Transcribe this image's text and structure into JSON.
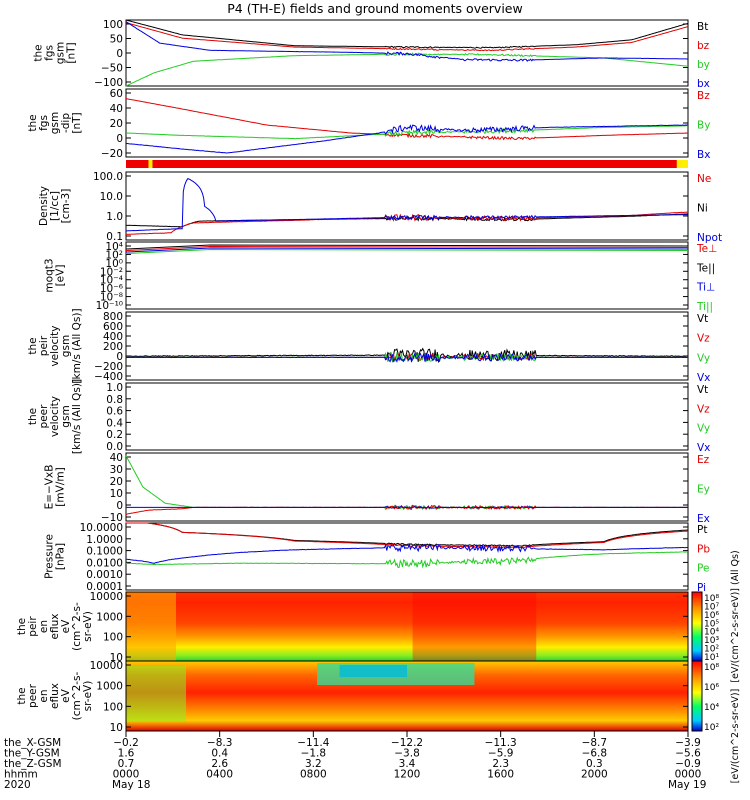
{
  "title": "P4 (TH-E) fields and ground moments overview",
  "colors": {
    "black": "#000000",
    "red": "#e00000",
    "green": "#22cc22",
    "blue": "#0000dd"
  },
  "panels": [
    {
      "id": "fgs_gsm",
      "ylabel": [
        "the",
        "fgs",
        "gsm",
        "[nT]"
      ],
      "ticks": [
        "100",
        "50",
        "0",
        "−50",
        "−100"
      ],
      "ylim": [
        -100,
        100
      ],
      "legend": [
        {
          "name": "Bt",
          "color": "#000000"
        },
        {
          "name": "bz",
          "color": "#e00000"
        },
        {
          "name": "by",
          "color": "#22cc22"
        },
        {
          "name": "bx",
          "color": "#0000dd"
        }
      ]
    },
    {
      "id": "fgs_gsm_dip",
      "ylabel": [
        "the",
        "fgs",
        "gsm",
        "-dip",
        "[nT]"
      ],
      "ticks": [
        "60",
        "40",
        "20",
        "0",
        "−20"
      ],
      "ylim": [
        -25,
        60
      ],
      "legend": [
        {
          "name": "Bz",
          "color": "#e00000"
        },
        {
          "name": "By",
          "color": "#22cc22"
        },
        {
          "name": "Bx",
          "color": "#0000dd"
        }
      ]
    },
    {
      "id": "density",
      "ylabel": [
        "Density",
        "[1/cc]",
        "[cm-3]"
      ],
      "ticks": [
        "100.0",
        "10.0",
        "1.0",
        "0.1"
      ],
      "ylim": [
        0.05,
        200
      ],
      "log": true,
      "legend": [
        {
          "name": "Ne",
          "color": "#e00000"
        },
        {
          "name": "Ni",
          "color": "#000000"
        },
        {
          "name": "Npot",
          "color": "#0000dd"
        }
      ]
    },
    {
      "id": "temp",
      "ylabel": [
        "moqt3",
        "[eV]"
      ],
      "ticks": [
        "10⁴",
        "10²",
        "10⁰",
        "10⁻²",
        "10⁻⁴",
        "10⁻⁶",
        "10⁻⁸",
        "10⁻¹⁰"
      ],
      "log": true,
      "legend": [
        {
          "name": "Te⊥",
          "color": "#e00000"
        },
        {
          "name": "Te||",
          "color": "#000000"
        },
        {
          "name": "Ti⊥",
          "color": "#0000dd"
        },
        {
          "name": "Ti||",
          "color": "#22cc22"
        }
      ]
    },
    {
      "id": "peir_vel",
      "ylabel": [
        "the",
        "peir",
        "velocity",
        "gsm",
        "[km/s (All Qs)]"
      ],
      "ticks": [
        "800",
        "600",
        "400",
        "200",
        "0",
        "−200",
        "−400"
      ],
      "ylim": [
        -400,
        800
      ],
      "legend": [
        {
          "name": "Vt",
          "color": "#000000"
        },
        {
          "name": "Vz",
          "color": "#e00000"
        },
        {
          "name": "Vy",
          "color": "#22cc22"
        },
        {
          "name": "Vx",
          "color": "#0000dd"
        }
      ]
    },
    {
      "id": "peer_vel",
      "ylabel": [
        "the",
        "peer",
        "velocity",
        "gsm",
        "[km/s (All Qs)]"
      ],
      "ticks": [
        "1.0",
        "0.8",
        "0.6",
        "0.4",
        "0.2",
        "0.0"
      ],
      "ylim": [
        0,
        1
      ],
      "legend": [
        {
          "name": "Vt",
          "color": "#000000"
        },
        {
          "name": "Vz",
          "color": "#e00000"
        },
        {
          "name": "Vy",
          "color": "#22cc22"
        },
        {
          "name": "Vx",
          "color": "#0000dd"
        }
      ]
    },
    {
      "id": "efield",
      "ylabel": [
        "E=−VxB",
        "[mV/m]"
      ],
      "ticks": [
        "40",
        "30",
        "20",
        "10",
        "0",
        "−10"
      ],
      "ylim": [
        -10,
        40
      ],
      "legend": [
        {
          "name": "Ez",
          "color": "#e00000"
        },
        {
          "name": "Ey",
          "color": "#22cc22"
        },
        {
          "name": "Ex",
          "color": "#0000dd"
        }
      ]
    },
    {
      "id": "pressure",
      "ylabel": [
        "Pressure",
        "[nPa]"
      ],
      "ticks": [
        "10.0000",
        "1.0000",
        "0.1000",
        "0.0100",
        "0.0010",
        "0.0001"
      ],
      "ylim": [
        0.0001,
        10
      ],
      "log": true,
      "legend": [
        {
          "name": "Pt",
          "color": "#000000"
        },
        {
          "name": "Pb",
          "color": "#e00000"
        },
        {
          "name": "Pe",
          "color": "#22cc22"
        },
        {
          "name": "Pi",
          "color": "#0000dd"
        }
      ]
    },
    {
      "id": "peir_spec",
      "ylabel": [
        "the",
        "peir",
        "en",
        "eflux",
        "eV",
        "(cm^2-s-",
        "sr-eV)"
      ],
      "ticks": [
        "10000",
        "1000",
        "100",
        "10"
      ],
      "log": true
    },
    {
      "id": "peer_spec",
      "ylabel": [
        "the",
        "peer",
        "en",
        "eflux",
        "eV",
        "(cm^2-s-",
        "sr-eV)"
      ],
      "ticks": [
        "10000",
        "1000",
        "100",
        "10"
      ],
      "log": true
    }
  ],
  "colorbars": [
    {
      "labels": [
        "10⁸",
        "10⁷",
        "10⁶",
        "10⁵",
        "10⁴",
        "10³",
        "10²",
        "10¹"
      ],
      "title": "[eV/(cm^2-s-sr-eV)] (All Qs)"
    },
    {
      "labels": [
        "10⁸",
        "10⁶",
        "10⁴",
        "10²"
      ],
      "title": "[eV/(cm^2-s-sr-eV)]"
    }
  ],
  "axis": {
    "rows": [
      {
        "name": "the_X-GSM",
        "values": [
          "−0.2",
          "−8.3",
          "−11.4",
          "−12.2",
          "−11.3",
          "−8.7",
          "−3.9"
        ]
      },
      {
        "name": "the_Y-GSM",
        "values": [
          "1.6",
          "0.4",
          "−1.8",
          "−3.8",
          "−5.9",
          "−6.8",
          "−5.6"
        ]
      },
      {
        "name": "the_Z-GSM",
        "values": [
          "0.7",
          "2.6",
          "3.2",
          "3.4",
          "2.3",
          "0.3",
          "−0.9"
        ]
      },
      {
        "name": "hhmm",
        "values": [
          "0000",
          "0400",
          "0800",
          "1200",
          "1600",
          "2000",
          "0000"
        ]
      }
    ],
    "year": "2020",
    "dates": [
      "May 18",
      "May 19"
    ]
  },
  "chart_data": {
    "type": "line",
    "title": "P4 (TH-E) fields and ground moments overview",
    "x": [
      "0000",
      "0400",
      "0800",
      "1200",
      "1600",
      "2000",
      "0000"
    ],
    "series": [
      {
        "name": "Bt",
        "values": [
          100,
          30,
          18,
          15,
          14,
          25,
          75
        ]
      },
      {
        "name": "bz",
        "values": [
          60,
          25,
          15,
          8,
          3,
          10,
          45
        ]
      },
      {
        "name": "by",
        "values": [
          -100,
          -20,
          -8,
          -3,
          -8,
          -15,
          -40
        ]
      },
      {
        "name": "bx",
        "values": [
          95,
          10,
          2,
          -5,
          -25,
          -20,
          -15
        ]
      }
    ]
  }
}
